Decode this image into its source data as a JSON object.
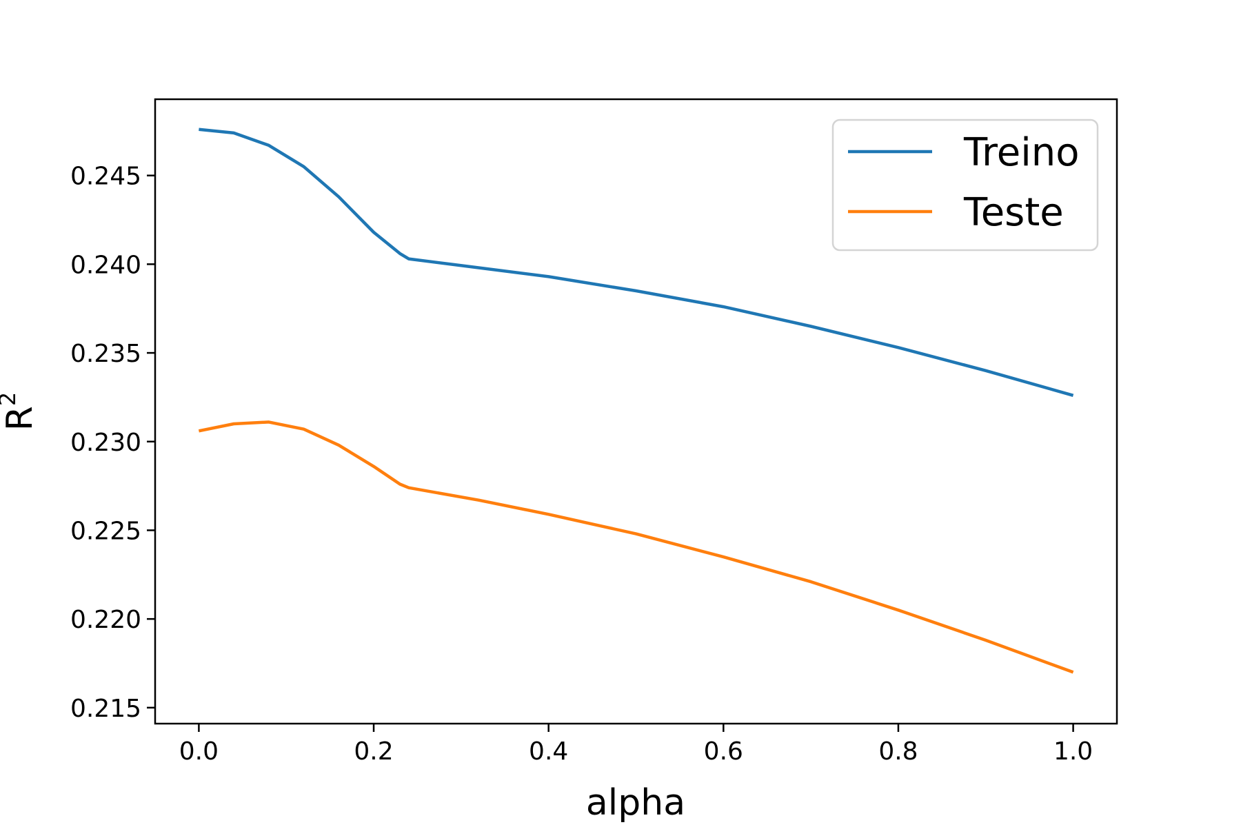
{
  "chart_data": {
    "type": "line",
    "xlabel": "alpha",
    "ylabel": "R",
    "ylabel_superscript": "2",
    "xlim": [
      -0.05,
      1.05
    ],
    "ylim": [
      0.2141,
      0.2493
    ],
    "xticks": [
      0.0,
      0.2,
      0.4,
      0.6,
      0.8,
      1.0
    ],
    "xtick_labels": [
      "0.0",
      "0.2",
      "0.4",
      "0.6",
      "0.8",
      "1.0"
    ],
    "yticks": [
      0.215,
      0.22,
      0.225,
      0.23,
      0.235,
      0.24,
      0.245
    ],
    "ytick_labels": [
      "0.215",
      "0.220",
      "0.225",
      "0.230",
      "0.235",
      "0.240",
      "0.245"
    ],
    "grid": false,
    "legend_position": "top-right",
    "x": [
      0.0,
      0.04,
      0.08,
      0.12,
      0.16,
      0.2,
      0.23,
      0.24,
      0.32,
      0.4,
      0.5,
      0.6,
      0.7,
      0.8,
      0.9,
      1.0
    ],
    "series": [
      {
        "name": "Treino",
        "color": "#1f77b4",
        "values": [
          0.2476,
          0.2474,
          0.2467,
          0.2455,
          0.2438,
          0.2418,
          0.2406,
          0.2403,
          0.2398,
          0.2393,
          0.2385,
          0.2376,
          0.2365,
          0.2353,
          0.234,
          0.2326
        ]
      },
      {
        "name": "Teste",
        "color": "#ff7f0e",
        "values": [
          0.2306,
          0.231,
          0.2311,
          0.2307,
          0.2298,
          0.2286,
          0.2276,
          0.2274,
          0.2267,
          0.2259,
          0.2248,
          0.2235,
          0.2221,
          0.2205,
          0.2188,
          0.217
        ]
      }
    ]
  }
}
